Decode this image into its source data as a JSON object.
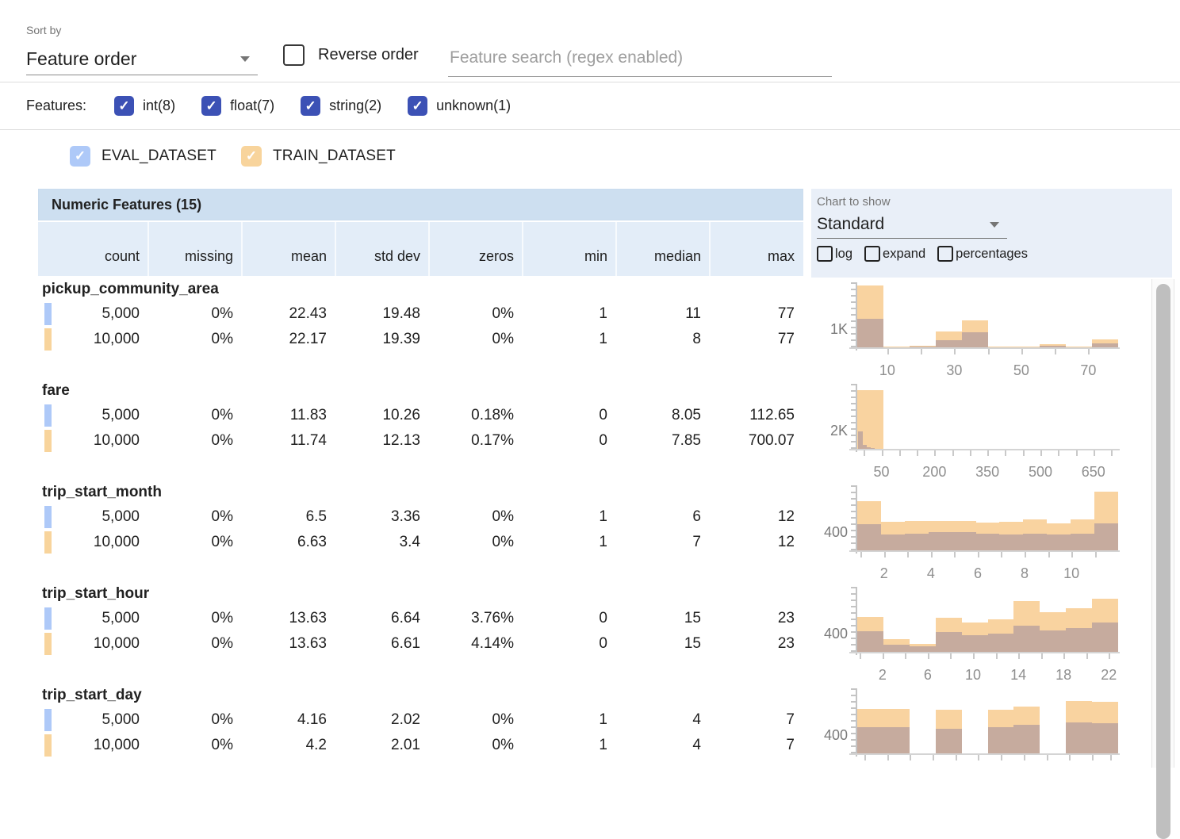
{
  "toolbar": {
    "sort_by_label": "Sort by",
    "sort_by_value": "Feature order",
    "reverse_order_label": "Reverse order",
    "search_placeholder": "Feature search (regex enabled)"
  },
  "feature_filter": {
    "label": "Features:",
    "types": [
      {
        "label": "int(8)",
        "checked": true
      },
      {
        "label": "float(7)",
        "checked": true
      },
      {
        "label": "string(2)",
        "checked": true
      },
      {
        "label": "unknown(1)",
        "checked": true
      }
    ]
  },
  "datasets": [
    {
      "label": "EVAL_DATASET",
      "color": "#aec9f8",
      "checked": true
    },
    {
      "label": "TRAIN_DATASET",
      "color": "#f8d49c",
      "checked": true
    }
  ],
  "table": {
    "title": "Numeric Features (15)",
    "columns": [
      "count",
      "missing",
      "mean",
      "std dev",
      "zeros",
      "min",
      "median",
      "max"
    ],
    "features": [
      {
        "name": "pickup_community_area",
        "rows": [
          [
            "5,000",
            "0%",
            "22.43",
            "19.48",
            "0%",
            "1",
            "11",
            "77"
          ],
          [
            "10,000",
            "0%",
            "22.17",
            "19.39",
            "0%",
            "1",
            "8",
            "77"
          ]
        ]
      },
      {
        "name": "fare",
        "rows": [
          [
            "5,000",
            "0%",
            "11.83",
            "10.26",
            "0.18%",
            "0",
            "8.05",
            "112.65"
          ],
          [
            "10,000",
            "0%",
            "11.74",
            "12.13",
            "0.17%",
            "0",
            "7.85",
            "700.07"
          ]
        ]
      },
      {
        "name": "trip_start_month",
        "rows": [
          [
            "5,000",
            "0%",
            "6.5",
            "3.36",
            "0%",
            "1",
            "6",
            "12"
          ],
          [
            "10,000",
            "0%",
            "6.63",
            "3.4",
            "0%",
            "1",
            "7",
            "12"
          ]
        ]
      },
      {
        "name": "trip_start_hour",
        "rows": [
          [
            "5,000",
            "0%",
            "13.63",
            "6.64",
            "3.76%",
            "0",
            "15",
            "23"
          ],
          [
            "10,000",
            "0%",
            "13.63",
            "6.61",
            "4.14%",
            "0",
            "15",
            "23"
          ]
        ]
      },
      {
        "name": "trip_start_day",
        "rows": [
          [
            "5,000",
            "0%",
            "4.16",
            "2.02",
            "0%",
            "1",
            "4",
            "7"
          ],
          [
            "10,000",
            "0%",
            "4.2",
            "2.01",
            "0%",
            "1",
            "4",
            "7"
          ]
        ]
      }
    ]
  },
  "chart_controls": {
    "label": "Chart to show",
    "selected": "Standard",
    "checkboxes": [
      {
        "label": "log",
        "checked": false
      },
      {
        "label": "expand",
        "checked": false
      },
      {
        "label": "percentages",
        "checked": false
      }
    ]
  },
  "colors": {
    "accent_indigo": "#3c51b5",
    "eval_marker": "#aec9f8",
    "train_marker": "#f8d49c",
    "train_bar": "#f9d3a0",
    "overlap_bar": "#c6ab9e"
  },
  "chart_data": [
    {
      "type": "histogram",
      "feature": "pickup_community_area",
      "ylabel": "1K",
      "series": [
        "TRAIN_DATASET",
        "EVAL_DATASET"
      ],
      "x_range": [
        1,
        77
      ],
      "x_tick_labels": [
        {
          "label": "10",
          "pos": 0.118
        },
        {
          "label": "30",
          "pos": 0.374
        },
        {
          "label": "50",
          "pos": 0.63
        },
        {
          "label": "70",
          "pos": 0.886
        }
      ],
      "minor_ticks": [
        0.118,
        0.246,
        0.374,
        0.502,
        0.63,
        0.758,
        0.886
      ],
      "train_heights": [
        1.0,
        0.01,
        0.03,
        0.26,
        0.44,
        0.01,
        0.01,
        0.05,
        0.01,
        0.13
      ],
      "eval_heights": [
        0.46,
        0.005,
        0.015,
        0.12,
        0.25,
        0.005,
        0.005,
        0.02,
        0.005,
        0.07
      ]
    },
    {
      "type": "histogram",
      "feature": "fare",
      "ylabel": "2K",
      "series": [
        "TRAIN_DATASET",
        "EVAL_DATASET"
      ],
      "x_range": [
        0,
        700.07
      ],
      "x_tick_labels": [
        {
          "label": "50",
          "pos": 0.0955
        },
        {
          "label": "200",
          "pos": 0.298
        },
        {
          "label": "350",
          "pos": 0.5005
        },
        {
          "label": "500",
          "pos": 0.703
        },
        {
          "label": "650",
          "pos": 0.9055
        }
      ],
      "minor_ticks": [
        0.028,
        0.0955,
        0.163,
        0.2305,
        0.298,
        0.3655,
        0.433,
        0.5005,
        0.568,
        0.6355,
        0.703,
        0.7705,
        0.838,
        0.9055,
        0.973
      ],
      "train_heights": [
        0.95,
        0,
        0,
        0,
        0,
        0,
        0,
        0,
        0,
        0
      ],
      "eval_bars": [
        {
          "pos": 0.004,
          "w": 0.016,
          "h": 0.28
        },
        {
          "pos": 0.02,
          "w": 0.016,
          "h": 0.07
        },
        {
          "pos": 0.036,
          "w": 0.016,
          "h": 0.03
        },
        {
          "pos": 0.052,
          "w": 0.016,
          "h": 0.015
        }
      ]
    },
    {
      "type": "histogram",
      "feature": "trip_start_month",
      "ylabel": "400",
      "series": [
        "TRAIN_DATASET",
        "EVAL_DATASET"
      ],
      "x_range": [
        1,
        12
      ],
      "x_tick_labels": [
        {
          "label": "2",
          "pos": 0.1055
        },
        {
          "label": "4",
          "pos": 0.2845
        },
        {
          "label": "6",
          "pos": 0.4635
        },
        {
          "label": "8",
          "pos": 0.6425
        },
        {
          "label": "10",
          "pos": 0.8215
        }
      ],
      "minor_ticks": [
        0.016,
        0.1055,
        0.195,
        0.2845,
        0.374,
        0.4635,
        0.553,
        0.6425,
        0.732,
        0.8215,
        0.911
      ],
      "train_heights": [
        0.8,
        0.46,
        0.48,
        0.48,
        0.47,
        0.45,
        0.46,
        0.5,
        0.44,
        0.5,
        0.95
      ],
      "eval_heights": [
        0.42,
        0.26,
        0.27,
        0.29,
        0.3,
        0.27,
        0.26,
        0.27,
        0.26,
        0.27,
        0.44
      ]
    },
    {
      "type": "histogram",
      "feature": "trip_start_hour",
      "ylabel": "400",
      "series": [
        "TRAIN_DATASET",
        "EVAL_DATASET"
      ],
      "x_range": [
        0,
        23
      ],
      "x_tick_labels": [
        {
          "label": "2",
          "pos": 0.0995
        },
        {
          "label": "6",
          "pos": 0.2725
        },
        {
          "label": "10",
          "pos": 0.4455
        },
        {
          "label": "14",
          "pos": 0.6185
        },
        {
          "label": "18",
          "pos": 0.7915
        },
        {
          "label": "22",
          "pos": 0.9645
        }
      ],
      "minor_ticks": [
        0.013,
        0.0995,
        0.186,
        0.2725,
        0.359,
        0.4455,
        0.532,
        0.6185,
        0.705,
        0.7915,
        0.878,
        0.9645
      ],
      "train_heights": [
        0.56,
        0.2,
        0.13,
        0.55,
        0.47,
        0.52,
        0.82,
        0.64,
        0.71,
        0.86
      ],
      "eval_heights": [
        0.33,
        0.11,
        0.09,
        0.32,
        0.27,
        0.29,
        0.42,
        0.35,
        0.38,
        0.47
      ]
    },
    {
      "type": "histogram",
      "feature": "trip_start_day",
      "ylabel": "400",
      "series": [
        "TRAIN_DATASET",
        "EVAL_DATASET"
      ],
      "x_range": [
        1,
        7
      ],
      "x_tick_labels": [],
      "minor_ticks": [
        0.03,
        0.117,
        0.204,
        0.291,
        0.378,
        0.465,
        0.552,
        0.639,
        0.726,
        0.813,
        0.9,
        0.97
      ],
      "train_heights": [
        0.72,
        0.72,
        0,
        0.7,
        0,
        0.7,
        0.76,
        0,
        0.84,
        0.83
      ],
      "eval_heights": [
        0.42,
        0.42,
        0,
        0.4,
        0,
        0.42,
        0.46,
        0,
        0.5,
        0.49
      ]
    }
  ]
}
